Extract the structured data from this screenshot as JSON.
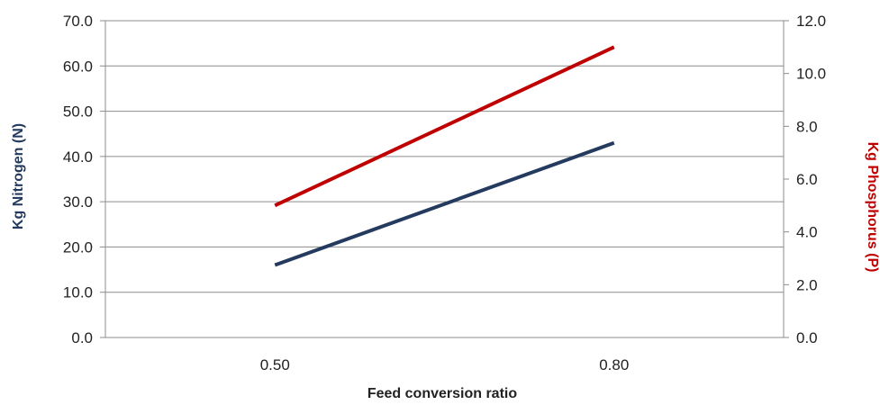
{
  "chart_data": {
    "type": "line",
    "xlabel": "Feed conversion ratio",
    "ylabel_left": "Kg Nitrogen (N)",
    "ylabel_right": "Kg Phosphorus (P)",
    "categories": [
      "0.50",
      "0.80"
    ],
    "y_left": {
      "min": 0,
      "max": 70,
      "step": 10,
      "ticks": [
        "0.0",
        "10.0",
        "20.0",
        "30.0",
        "40.0",
        "50.0",
        "60.0",
        "70.0"
      ]
    },
    "y_right": {
      "min": 0,
      "max": 12,
      "step": 2,
      "ticks": [
        "0.0",
        "2.0",
        "4.0",
        "6.0",
        "8.0",
        "10.0",
        "12.0"
      ]
    },
    "grid": true,
    "series": [
      {
        "axis": "left",
        "color": "#243a5e",
        "values": [
          16,
          43
        ]
      },
      {
        "axis": "right",
        "color": "#c00000",
        "values": [
          5.0,
          11.0
        ]
      }
    ],
    "colors": {
      "left_title": "#243a5e",
      "right_title": "#c00000",
      "grid": "#8c8c8c",
      "axis": "#8c8c8c"
    }
  }
}
